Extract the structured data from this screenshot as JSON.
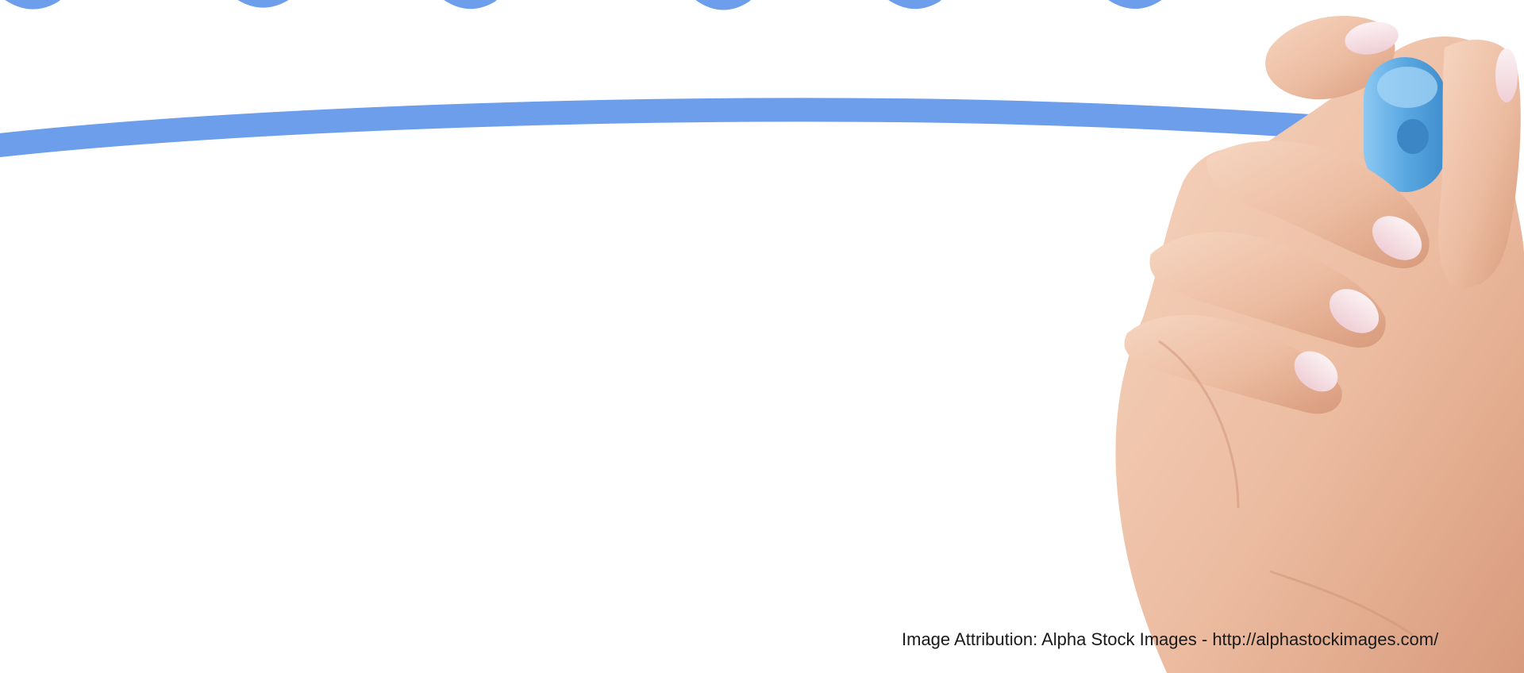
{
  "attribution": {
    "text": "Image Attribution: Alpha Stock Images - http://alphastockimages.com/"
  },
  "colors": {
    "background": "#ffffff",
    "marker_stroke": "#6d9eeb",
    "marker_body": "#5ba8e0",
    "marker_cap": "#9fd0f5",
    "skin_light": "#f4cfb8",
    "skin_mid": "#e8b498",
    "skin_shadow": "#c98c6f",
    "nail": "#f7e6ea"
  },
  "icons": {
    "hand": "hand-holding-marker-icon",
    "stroke": "marker-stroke-icon"
  }
}
